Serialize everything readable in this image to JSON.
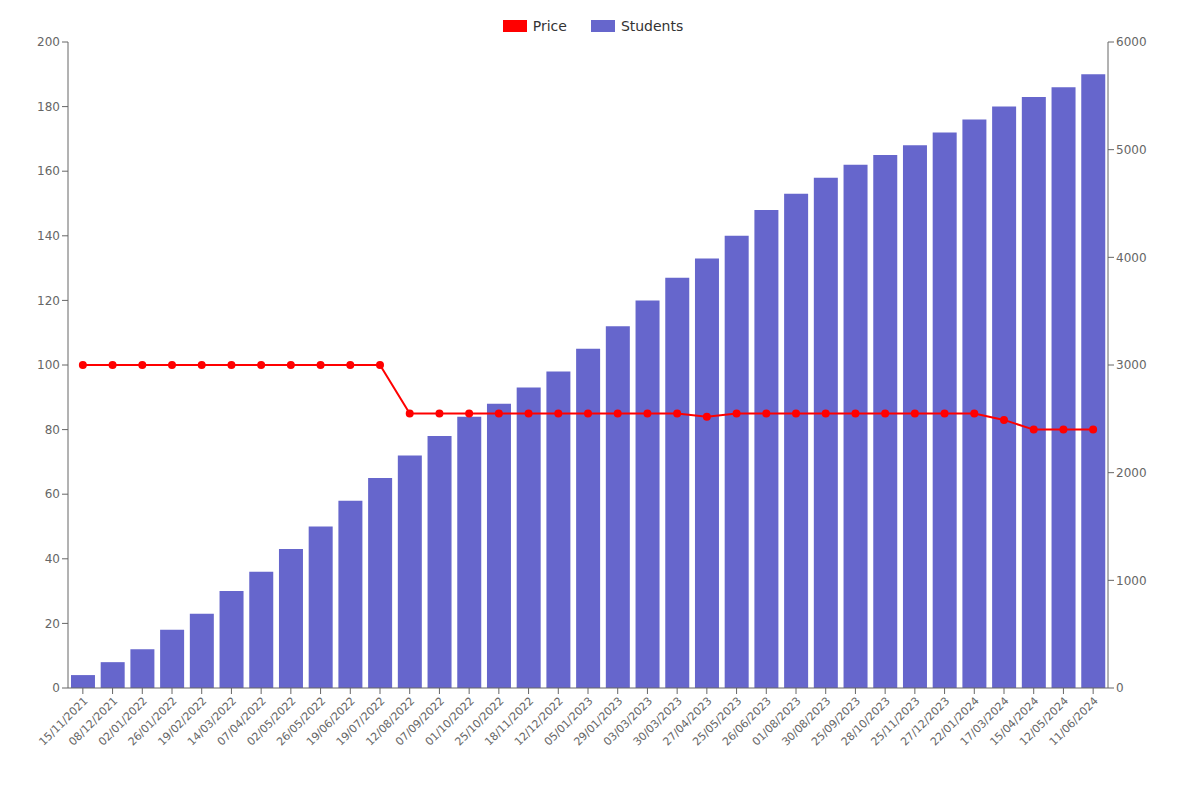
{
  "chart_data": {
    "type": "bar",
    "categories": [
      "15/11/2021",
      "08/12/2021",
      "02/01/2022",
      "26/01/2022",
      "19/02/2022",
      "14/03/2022",
      "07/04/2022",
      "02/05/2022",
      "26/05/2022",
      "19/06/2022",
      "19/07/2022",
      "12/08/2022",
      "07/09/2022",
      "01/10/2022",
      "25/10/2022",
      "18/11/2022",
      "12/12/2022",
      "05/01/2023",
      "29/01/2023",
      "03/03/2023",
      "30/03/2023",
      "27/04/2023",
      "25/05/2023",
      "26/06/2023",
      "01/08/2023",
      "30/08/2023",
      "25/09/2023",
      "28/10/2023",
      "25/11/2023",
      "27/12/2023",
      "22/01/2024",
      "17/03/2024",
      "15/04/2024",
      "12/05/2024",
      "11/06/2024"
    ],
    "series": [
      {
        "name": "Price",
        "type": "line",
        "color": "#ff0000",
        "marker": "circle",
        "values": [
          100,
          100,
          100,
          100,
          100,
          100,
          100,
          100,
          100,
          100,
          100,
          85,
          85,
          85,
          85,
          85,
          85,
          85,
          85,
          85,
          85,
          84,
          85,
          85,
          85,
          85,
          85,
          85,
          85,
          85,
          85,
          83,
          80,
          80,
          80
        ]
      },
      {
        "name": "Students",
        "type": "bar",
        "color": "#6666cc",
        "values": [
          4,
          8,
          12,
          18,
          23,
          30,
          36,
          43,
          50,
          58,
          65,
          72,
          78,
          84,
          88,
          93,
          98,
          105,
          112,
          120,
          127,
          133,
          140,
          148,
          153,
          158,
          162,
          165,
          168,
          172,
          176,
          180,
          183,
          186,
          190
        ]
      }
    ],
    "ylim": [
      0,
      200
    ],
    "yticks": [
      0,
      20,
      40,
      60,
      80,
      100,
      120,
      140,
      160,
      180,
      200
    ],
    "y2lim": [
      0,
      6000
    ],
    "y2ticks": [
      0,
      1000,
      2000,
      3000,
      4000,
      5000,
      6000
    ],
    "grid": false,
    "legend": "top"
  }
}
